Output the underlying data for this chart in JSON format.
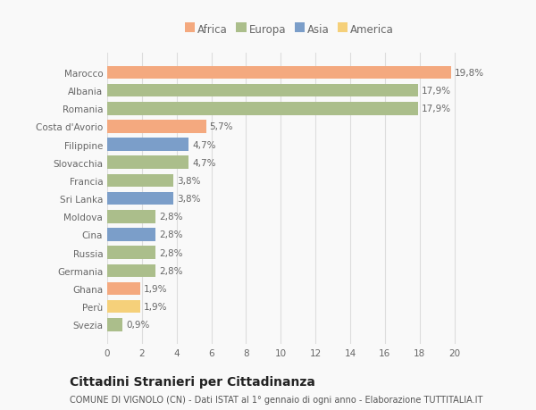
{
  "countries": [
    "Marocco",
    "Albania",
    "Romania",
    "Costa d'Avorio",
    "Filippine",
    "Slovacchia",
    "Francia",
    "Sri Lanka",
    "Moldova",
    "Cina",
    "Russia",
    "Germania",
    "Ghana",
    "Perù",
    "Svezia"
  ],
  "values": [
    19.8,
    17.9,
    17.9,
    5.7,
    4.7,
    4.7,
    3.8,
    3.8,
    2.8,
    2.8,
    2.8,
    2.8,
    1.9,
    1.9,
    0.9
  ],
  "continents": [
    "Africa",
    "Europa",
    "Europa",
    "Africa",
    "Asia",
    "Europa",
    "Europa",
    "Asia",
    "Europa",
    "Asia",
    "Europa",
    "Europa",
    "Africa",
    "America",
    "Europa"
  ],
  "colors": {
    "Africa": "#F4A97F",
    "Europa": "#ABBE8B",
    "Asia": "#7B9EC9",
    "America": "#F5D07A"
  },
  "legend_order": [
    "Africa",
    "Europa",
    "Asia",
    "America"
  ],
  "xlim": [
    0,
    21
  ],
  "xticks": [
    0,
    2,
    4,
    6,
    8,
    10,
    12,
    14,
    16,
    18,
    20
  ],
  "title": "Cittadini Stranieri per Cittadinanza",
  "subtitle": "COMUNE DI VIGNOLO (CN) - Dati ISTAT al 1° gennaio di ogni anno - Elaborazione TUTTITALIA.IT",
  "background_color": "#f9f9f9",
  "bar_height": 0.72,
  "title_fontsize": 10,
  "subtitle_fontsize": 7,
  "label_fontsize": 7.5,
  "tick_fontsize": 7.5,
  "legend_fontsize": 8.5
}
